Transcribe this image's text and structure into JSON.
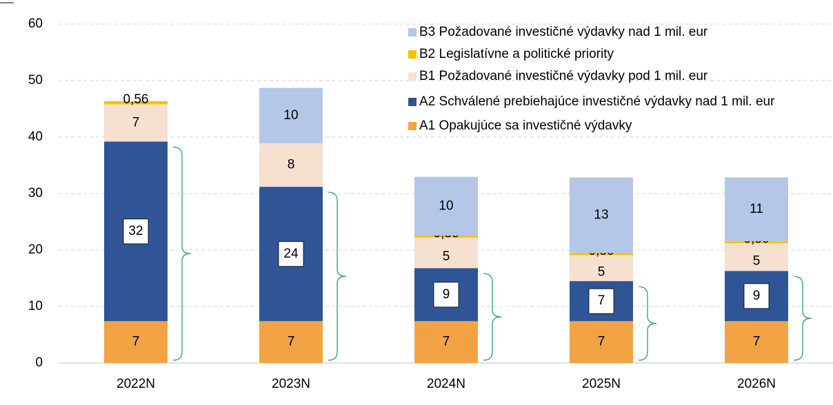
{
  "chart_data": {
    "type": "stacked_bar",
    "categories": [
      "2022N",
      "2023N",
      "2024N",
      "2025N",
      "2026N"
    ],
    "series": [
      {
        "name": "A1 Opakujúce sa investičné výdavky",
        "color": "#f2a444",
        "values": [
          7.4,
          7.4,
          7.4,
          7.4,
          7.4
        ],
        "value_labels": [
          "7",
          "7",
          "7",
          "7",
          "7"
        ]
      },
      {
        "name": "A2 Schválené prebiehajúce investičné výdavky nad 1 mil. eur",
        "color": "#2f5597",
        "values": [
          31.8,
          23.8,
          9.4,
          7.1,
          8.9
        ],
        "value_labels": [
          "32",
          "24",
          "9",
          "7",
          "9"
        ]
      },
      {
        "name": "B1 Požadované investičné výdavky pod 1 mil. eur",
        "color": "#f6e0d0",
        "values": [
          6.6,
          7.7,
          5.4,
          4.6,
          4.9
        ],
        "value_labels": [
          "7",
          "8",
          "5",
          "5",
          "5"
        ]
      },
      {
        "name": "B2 Legislatívne a politické priority",
        "color": "#ffc000",
        "values": [
          0.56,
          null,
          0.36,
          0.36,
          0.36
        ],
        "value_labels": [
          "0,56",
          null,
          "0,36",
          "0,36",
          "0,36"
        ]
      },
      {
        "name": "B3 Požadované investičné výdavky nad 1 mil. eur",
        "color": "#b4c7e7",
        "values": [
          null,
          9.8,
          10.4,
          13.4,
          11.3
        ],
        "value_labels": [
          null,
          "10",
          "10",
          "13",
          "11"
        ]
      }
    ],
    "ylim": [
      0,
      60
    ],
    "yticks": [
      0,
      10,
      20,
      30,
      40,
      50,
      60
    ],
    "grid": true,
    "legend": "upper right"
  }
}
